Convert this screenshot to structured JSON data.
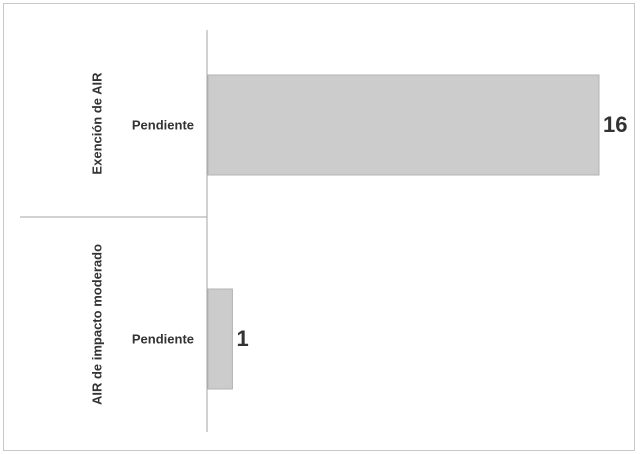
{
  "chart_data": {
    "type": "bar",
    "orientation": "horizontal",
    "groups": [
      {
        "name": "Exención de AIR",
        "categories": [
          "Pendiente"
        ],
        "values": [
          16
        ]
      },
      {
        "name": "AIR de impacto moderado",
        "categories": [
          "Pendiente"
        ],
        "values": [
          1
        ]
      }
    ],
    "xlim": [
      0,
      16
    ],
    "grid": false,
    "legend": "none",
    "bar_color": "#cccccc",
    "data_labels": true
  }
}
